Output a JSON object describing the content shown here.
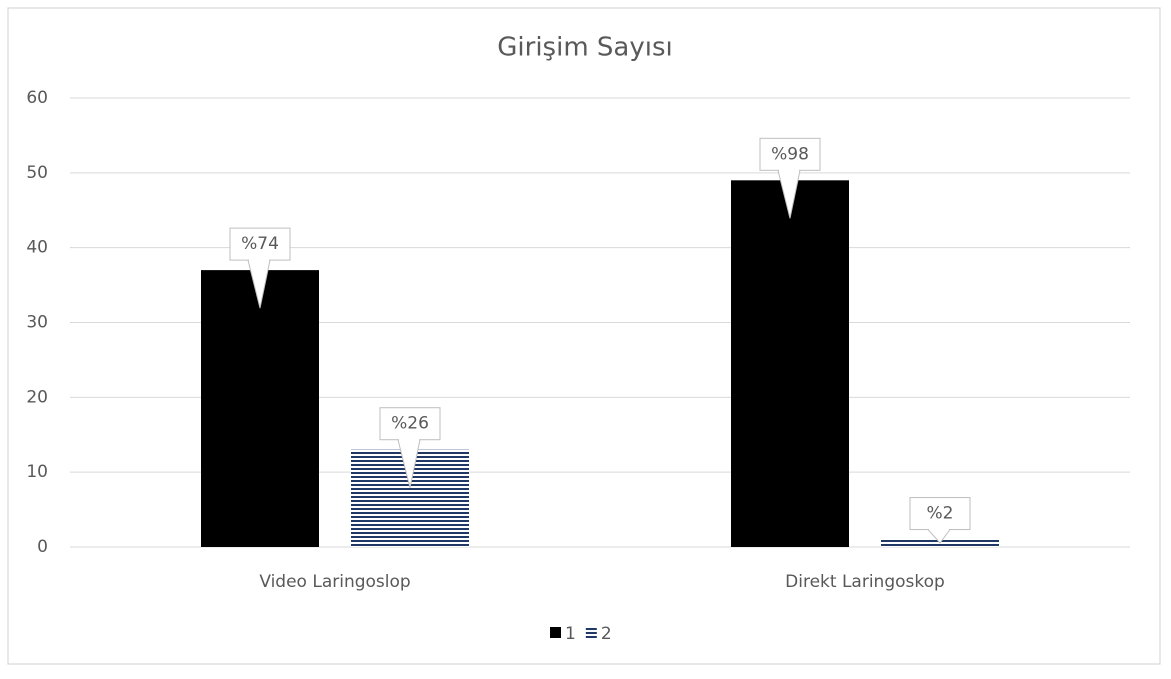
{
  "chart_data": {
    "type": "bar",
    "title": "Girişim Sayısı",
    "categories": [
      "Video Laringoslop",
      "Direkt Laringoskop"
    ],
    "series": [
      {
        "name": "1",
        "color": "#000000",
        "pattern": "solid",
        "values": [
          37,
          49
        ],
        "percent_labels": [
          "%74",
          "%98"
        ]
      },
      {
        "name": "2",
        "color": "#1f3864",
        "pattern": "horizontal-stripes",
        "values": [
          13,
          1
        ],
        "percent_labels": [
          "%26",
          "%2"
        ]
      }
    ],
    "ylim": [
      0,
      60
    ],
    "yticks": [
      0,
      10,
      20,
      30,
      40,
      50,
      60
    ],
    "grid": true,
    "legend": "bottom"
  }
}
